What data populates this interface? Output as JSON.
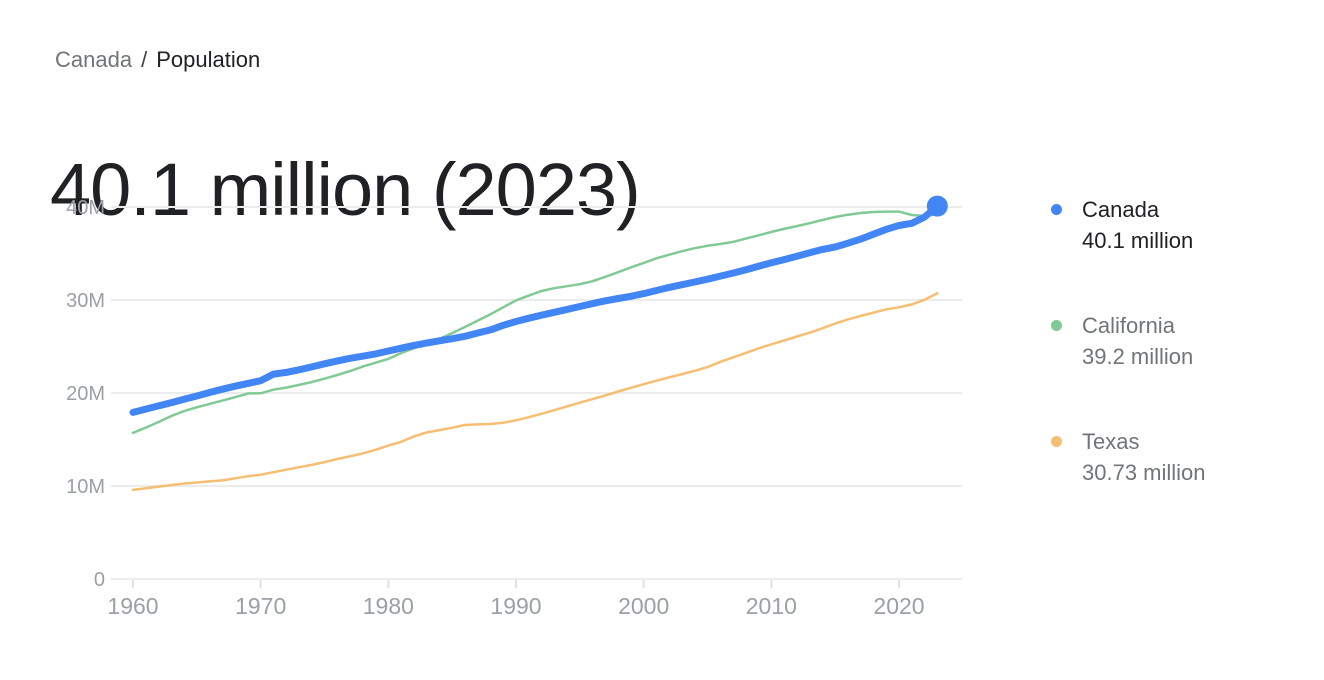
{
  "breadcrumb": {
    "location": "Canada",
    "separator": "/",
    "metric": "Population"
  },
  "header": {
    "title": "40.1 million (2023)"
  },
  "legend": {
    "entries": [
      {
        "name": "Canada",
        "value": "40.1 million",
        "color": "#4285f4",
        "active": true
      },
      {
        "name": "California",
        "value": "39.2 million",
        "color": "#81c995",
        "active": false
      },
      {
        "name": "Texas",
        "value": "30.73 million",
        "color": "#f6be72",
        "active": false
      }
    ]
  },
  "chart_data": {
    "type": "line",
    "unit": "million",
    "grid": "horizontal",
    "legend_position": "right",
    "ylim": [
      0,
      42
    ],
    "xlim": [
      1958,
      2025
    ],
    "x_ticks": [
      1960,
      1970,
      1980,
      1990,
      2000,
      2010,
      2020
    ],
    "y_ticks": [
      {
        "value": 0,
        "label": "0"
      },
      {
        "value": 10,
        "label": "10M"
      },
      {
        "value": 20,
        "label": "20M"
      },
      {
        "value": 30,
        "label": "30M"
      },
      {
        "value": 40,
        "label": "40M"
      }
    ],
    "years": [
      1960,
      1961,
      1962,
      1963,
      1964,
      1965,
      1966,
      1967,
      1968,
      1969,
      1970,
      1971,
      1972,
      1973,
      1974,
      1975,
      1976,
      1977,
      1978,
      1979,
      1980,
      1981,
      1982,
      1983,
      1984,
      1985,
      1986,
      1987,
      1988,
      1989,
      1990,
      1991,
      1992,
      1993,
      1994,
      1995,
      1996,
      1997,
      1998,
      1999,
      2000,
      2001,
      2002,
      2003,
      2004,
      2005,
      2006,
      2007,
      2008,
      2009,
      2010,
      2011,
      2012,
      2013,
      2014,
      2015,
      2016,
      2017,
      2018,
      2019,
      2020,
      2021,
      2022,
      2023
    ],
    "series": [
      {
        "name": "Texas",
        "color": "#f6be72",
        "stroke_width": 2.5,
        "end_dot": false,
        "latest_label": "30.73 million",
        "values": [
          9.58,
          9.75,
          9.94,
          10.1,
          10.27,
          10.38,
          10.49,
          10.6,
          10.83,
          11.05,
          11.22,
          11.48,
          11.75,
          12.02,
          12.27,
          12.57,
          12.9,
          13.19,
          13.5,
          13.89,
          14.34,
          14.75,
          15.33,
          15.75,
          16.01,
          16.27,
          16.56,
          16.62,
          16.67,
          16.81,
          17.06,
          17.4,
          17.76,
          18.16,
          18.56,
          18.96,
          19.34,
          19.74,
          20.16,
          20.56,
          20.95,
          21.32,
          21.69,
          22.03,
          22.39,
          22.78,
          23.36,
          23.83,
          24.31,
          24.8,
          25.24,
          25.65,
          26.08,
          26.48,
          26.96,
          27.47,
          27.91,
          28.29,
          28.63,
          29.0,
          29.22,
          29.53,
          30.03,
          30.73
        ]
      },
      {
        "name": "California",
        "color": "#81c995",
        "stroke_width": 2.5,
        "end_dot": false,
        "latest_label": "39.2 million",
        "values": [
          15.72,
          16.28,
          16.88,
          17.53,
          18.05,
          18.46,
          18.83,
          19.18,
          19.55,
          19.95,
          19.97,
          20.35,
          20.58,
          20.87,
          21.17,
          21.54,
          21.94,
          22.35,
          22.84,
          23.26,
          23.67,
          24.29,
          24.82,
          25.34,
          25.82,
          26.44,
          27.1,
          27.78,
          28.46,
          29.22,
          29.96,
          30.47,
          30.97,
          31.27,
          31.48,
          31.7,
          32.02,
          32.49,
          32.99,
          33.5,
          33.99,
          34.48,
          34.87,
          35.25,
          35.57,
          35.83,
          36.02,
          36.25,
          36.6,
          36.96,
          37.32,
          37.64,
          37.95,
          38.26,
          38.6,
          38.92,
          39.17,
          39.36,
          39.46,
          39.51,
          39.5,
          39.14,
          39.04,
          39.2
        ]
      },
      {
        "name": "Canada",
        "color": "#4285f4",
        "stroke_width": 7,
        "end_dot": true,
        "end_dot_radius": 10.5,
        "latest_label": "40.1 million",
        "values": [
          17.91,
          18.27,
          18.61,
          18.96,
          19.33,
          19.68,
          20.05,
          20.41,
          20.73,
          21.03,
          21.32,
          22.03,
          22.22,
          22.49,
          22.81,
          23.14,
          23.45,
          23.73,
          23.96,
          24.2,
          24.52,
          24.82,
          25.12,
          25.37,
          25.61,
          25.84,
          26.1,
          26.45,
          26.79,
          27.28,
          27.69,
          28.04,
          28.37,
          28.68,
          28.99,
          29.3,
          29.61,
          29.91,
          30.16,
          30.4,
          30.69,
          31.02,
          31.36,
          31.64,
          31.94,
          32.24,
          32.57,
          32.89,
          33.25,
          33.63,
          34.0,
          34.34,
          34.71,
          35.08,
          35.44,
          35.7,
          36.11,
          36.55,
          37.07,
          37.6,
          38.01,
          38.25,
          38.93,
          40.1
        ]
      }
    ],
    "style": {
      "grid_color": "#ececec",
      "tick_color": "#dfe1e3",
      "axis_text_color": "#9aa0a6"
    }
  }
}
